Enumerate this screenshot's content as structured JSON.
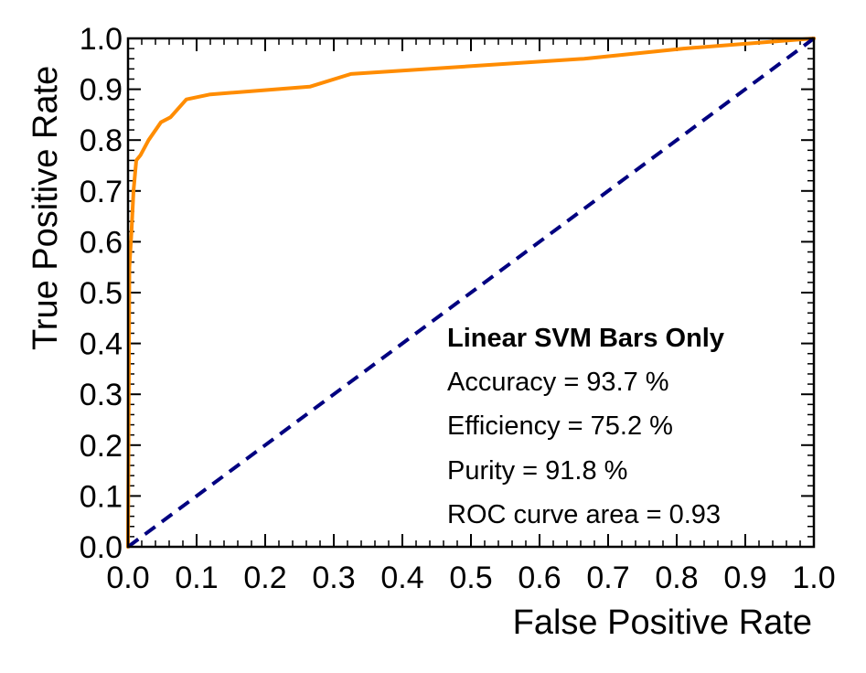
{
  "chart_data": {
    "type": "line",
    "xlabel": "False Positive Rate",
    "ylabel": "True Positive Rate",
    "xlim": [
      0.0,
      1.0
    ],
    "ylim": [
      0.0,
      1.0
    ],
    "x_ticks": [
      "0.0",
      "0.1",
      "0.2",
      "0.3",
      "0.4",
      "0.5",
      "0.6",
      "0.7",
      "0.8",
      "0.9",
      "1.0"
    ],
    "y_ticks": [
      "0.0",
      "0.1",
      "0.2",
      "0.3",
      "0.4",
      "0.5",
      "0.6",
      "0.7",
      "0.8",
      "0.9",
      "1.0"
    ],
    "grid": false,
    "series": [
      {
        "color": "#FF8C00",
        "style": "solid",
        "x": [
          0.0,
          0.002,
          0.005,
          0.008,
          0.012,
          0.018,
          0.03,
          0.048,
          0.062,
          0.085,
          0.12,
          0.265,
          0.325,
          0.665,
          0.81,
          1.0
        ],
        "y": [
          0.0,
          0.55,
          0.62,
          0.7,
          0.76,
          0.77,
          0.8,
          0.835,
          0.845,
          0.88,
          0.89,
          0.905,
          0.93,
          0.96,
          0.98,
          1.0
        ]
      },
      {
        "color": "#000080",
        "style": "dashed",
        "x": [
          0.0,
          1.0
        ],
        "y": [
          0.0,
          1.0
        ]
      }
    ],
    "annotations": {
      "title": "Linear SVM Bars Only",
      "lines": [
        "Accuracy = 93.7 %",
        "Efficiency = 75.2 %",
        "Purity = 91.8 %",
        "ROC curve area = 0.93"
      ]
    }
  }
}
